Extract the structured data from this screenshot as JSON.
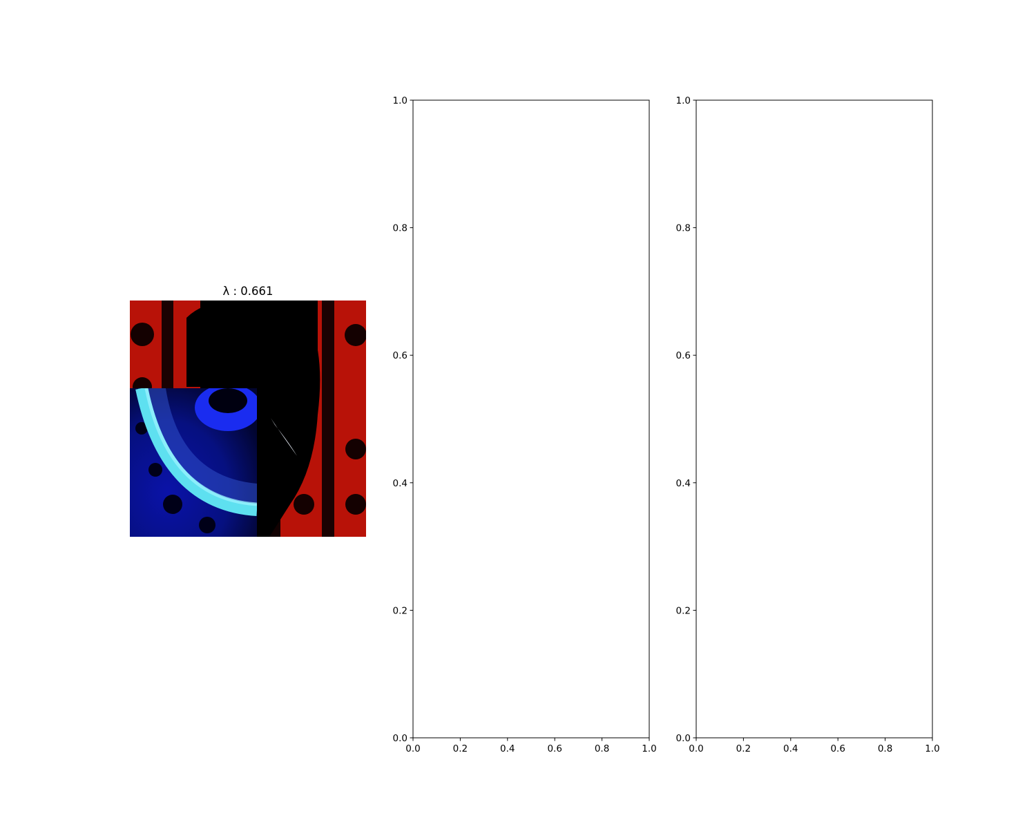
{
  "figure": {
    "background": "#ffffff"
  },
  "image_panel": {
    "title": "λ : 0.661",
    "description_colors": {
      "red_base": "#c81808",
      "dark": "#000000",
      "blue_base": "#0a14c8",
      "cyan_arc": "#5ad8e8"
    }
  },
  "chart_data": [
    {
      "type": "scatter",
      "title": "",
      "xlabel": "",
      "ylabel": "",
      "series": [],
      "xlim": [
        0,
        1
      ],
      "ylim": [
        0,
        1
      ],
      "xticks": [
        "0.0",
        "0.2",
        "0.4",
        "0.6",
        "0.8",
        "1.0"
      ],
      "yticks": [
        "0.0",
        "0.2",
        "0.4",
        "0.6",
        "0.8",
        "1.0"
      ],
      "grid": false
    },
    {
      "type": "scatter",
      "title": "",
      "xlabel": "",
      "ylabel": "",
      "series": [],
      "xlim": [
        0,
        1
      ],
      "ylim": [
        0,
        1
      ],
      "xticks": [
        "0.0",
        "0.2",
        "0.4",
        "0.6",
        "0.8",
        "1.0"
      ],
      "yticks": [
        "0.0",
        "0.2",
        "0.4",
        "0.6",
        "0.8",
        "1.0"
      ],
      "grid": false
    }
  ]
}
